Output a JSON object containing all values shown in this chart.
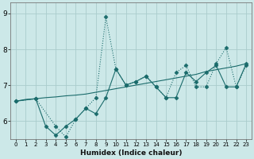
{
  "xlabel": "Humidex (Indice chaleur)",
  "bg_color": "#cce8e8",
  "grid_color": "#aacccc",
  "line_color": "#1a6b6b",
  "xlim": [
    -0.5,
    23.5
  ],
  "ylim": [
    5.5,
    9.3
  ],
  "yticks": [
    6,
    7,
    8,
    9
  ],
  "xticks": [
    0,
    1,
    2,
    3,
    4,
    5,
    6,
    7,
    8,
    9,
    10,
    11,
    12,
    13,
    14,
    15,
    16,
    17,
    18,
    19,
    20,
    21,
    22,
    23
  ],
  "line1_x": [
    0,
    1,
    2,
    3,
    4,
    5,
    6,
    7,
    8,
    9,
    10,
    11,
    12,
    13,
    14,
    15,
    16,
    17,
    18,
    19,
    20,
    21,
    22,
    23
  ],
  "line1_y": [
    6.55,
    6.6,
    6.62,
    6.65,
    6.67,
    6.7,
    6.72,
    6.75,
    6.8,
    6.85,
    6.9,
    6.95,
    7.0,
    7.05,
    7.1,
    7.15,
    7.2,
    7.25,
    7.3,
    7.38,
    7.43,
    7.48,
    7.53,
    7.6
  ],
  "line2_x": [
    0,
    2,
    3,
    4,
    5,
    6,
    7,
    8,
    9,
    10,
    11,
    12,
    13,
    14,
    15,
    16,
    17,
    18,
    19,
    20,
    21,
    22,
    23
  ],
  "line2_y": [
    6.55,
    6.62,
    5.85,
    5.6,
    5.85,
    6.05,
    6.35,
    6.2,
    6.65,
    7.45,
    7.0,
    7.1,
    7.25,
    6.95,
    6.65,
    6.65,
    7.35,
    7.1,
    7.35,
    7.55,
    6.95,
    6.95,
    7.6
  ],
  "line3_x": [
    0,
    2,
    4,
    5,
    6,
    7,
    8,
    9,
    10,
    11,
    12,
    13,
    14,
    15,
    16,
    17,
    18,
    19,
    20,
    21,
    22,
    23
  ],
  "line3_y": [
    6.55,
    6.62,
    5.85,
    5.55,
    6.05,
    6.35,
    6.65,
    8.9,
    7.45,
    7.0,
    7.1,
    7.25,
    6.95,
    6.65,
    7.35,
    7.55,
    6.95,
    6.95,
    7.6,
    8.05,
    6.95,
    7.55
  ]
}
